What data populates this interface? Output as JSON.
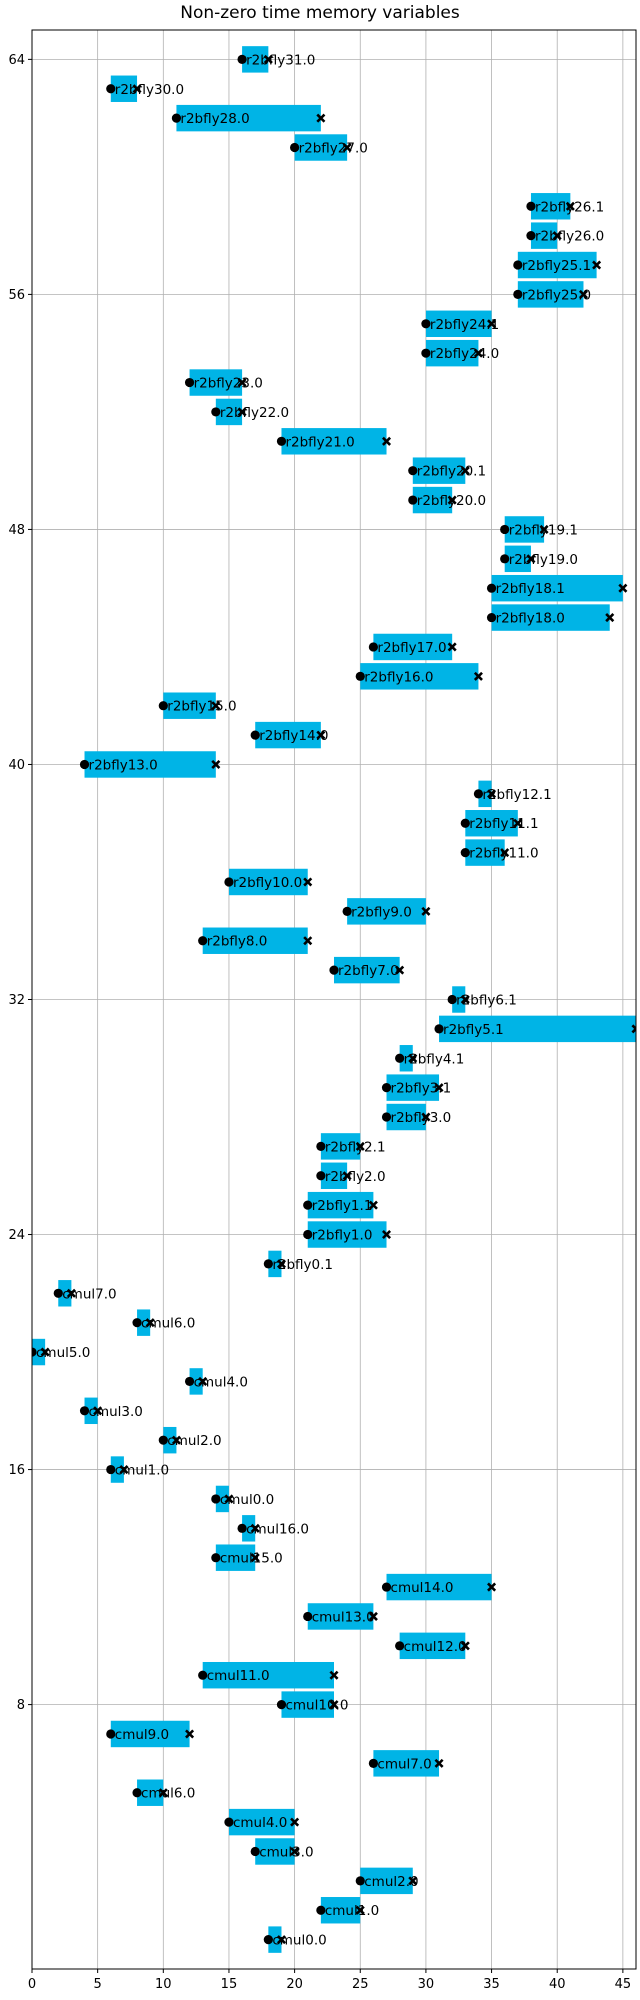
{
  "chart_data": {
    "type": "gantt",
    "title": "Non-zero time memory variables",
    "xlabel": "",
    "ylabel": "",
    "xlim": [
      0,
      46
    ],
    "ylim": [
      -1,
      65
    ],
    "x_ticks": [
      0,
      5,
      10,
      15,
      20,
      25,
      30,
      35,
      40,
      45
    ],
    "y_ticks": [
      8,
      16,
      24,
      32,
      40,
      48,
      56,
      64
    ],
    "grid": true,
    "colors": {
      "bar": "#00b4e6",
      "marker": "#000000"
    },
    "markers": {
      "start": "circle",
      "end": "x"
    },
    "tasks": [
      {
        "label": "cmul0.0",
        "row": 0,
        "start": 18,
        "end": 19
      },
      {
        "label": "cmul1.0",
        "row": 1,
        "start": 22,
        "end": 25
      },
      {
        "label": "cmul2.0",
        "row": 2,
        "start": 25,
        "end": 29
      },
      {
        "label": "cmul3.0",
        "row": 3,
        "start": 17,
        "end": 20
      },
      {
        "label": "cmul4.0",
        "row": 4,
        "start": 15,
        "end": 20
      },
      {
        "label": "cmul6.0",
        "row": 5,
        "start": 8,
        "end": 10
      },
      {
        "label": "cmul7.0",
        "row": 6,
        "start": 26,
        "end": 31
      },
      {
        "label": "cmul9.0",
        "row": 7,
        "start": 6,
        "end": 12
      },
      {
        "label": "cmul10.0",
        "row": 8,
        "start": 19,
        "end": 23
      },
      {
        "label": "cmul11.0",
        "row": 9,
        "start": 13,
        "end": 23
      },
      {
        "label": "cmul12.0",
        "row": 10,
        "start": 28,
        "end": 33
      },
      {
        "label": "cmul13.0",
        "row": 11,
        "start": 21,
        "end": 26
      },
      {
        "label": "cmul14.0",
        "row": 12,
        "start": 27,
        "end": 35
      },
      {
        "label": "cmul15.0",
        "row": 13,
        "start": 14,
        "end": 17
      },
      {
        "label": "cmul16.0",
        "row": 14,
        "start": 16,
        "end": 17
      },
      {
        "label": "cmul0.0",
        "row": 15,
        "start": 14,
        "end": 15
      },
      {
        "label": "cmul1.0",
        "row": 16,
        "start": 6,
        "end": 7
      },
      {
        "label": "cmul2.0",
        "row": 17,
        "start": 10,
        "end": 11
      },
      {
        "label": "cmul3.0",
        "row": 18,
        "start": 4,
        "end": 5
      },
      {
        "label": "cmul4.0",
        "row": 19,
        "start": 12,
        "end": 13
      },
      {
        "label": "cmul5.0",
        "row": 20,
        "start": 0,
        "end": 1
      },
      {
        "label": "cmul6.0",
        "row": 21,
        "start": 8,
        "end": 9
      },
      {
        "label": "cmul7.0",
        "row": 22,
        "start": 2,
        "end": 3
      },
      {
        "label": "r2bfly0.1",
        "row": 23,
        "start": 18,
        "end": 19
      },
      {
        "label": "r2bfly1.0",
        "row": 24,
        "start": 21,
        "end": 27
      },
      {
        "label": "r2bfly1.1",
        "row": 25,
        "start": 21,
        "end": 26
      },
      {
        "label": "r2bfly2.0",
        "row": 26,
        "start": 22,
        "end": 24
      },
      {
        "label": "r2bfly2.1",
        "row": 27,
        "start": 22,
        "end": 25
      },
      {
        "label": "r2bfly3.0",
        "row": 28,
        "start": 27,
        "end": 30
      },
      {
        "label": "r2bfly3.1",
        "row": 29,
        "start": 27,
        "end": 31
      },
      {
        "label": "r2bfly4.1",
        "row": 30,
        "start": 28,
        "end": 29
      },
      {
        "label": "r2bfly5.1",
        "row": 31,
        "start": 31,
        "end": 46
      },
      {
        "label": "r2bfly6.1",
        "row": 32,
        "start": 32,
        "end": 33
      },
      {
        "label": "r2bfly7.0",
        "row": 33,
        "start": 23,
        "end": 28
      },
      {
        "label": "r2bfly8.0",
        "row": 34,
        "start": 13,
        "end": 21
      },
      {
        "label": "r2bfly9.0",
        "row": 35,
        "start": 24,
        "end": 30
      },
      {
        "label": "r2bfly10.0",
        "row": 36,
        "start": 15,
        "end": 21
      },
      {
        "label": "r2bfly11.0",
        "row": 37,
        "start": 33,
        "end": 36
      },
      {
        "label": "r2bfly11.1",
        "row": 38,
        "start": 33,
        "end": 37
      },
      {
        "label": "r2bfly12.1",
        "row": 39,
        "start": 34,
        "end": 35
      },
      {
        "label": "r2bfly13.0",
        "row": 40,
        "start": 4,
        "end": 14
      },
      {
        "label": "r2bfly14.0",
        "row": 41,
        "start": 17,
        "end": 22
      },
      {
        "label": "r2bfly15.0",
        "row": 42,
        "start": 10,
        "end": 14
      },
      {
        "label": "r2bfly16.0",
        "row": 43,
        "start": 25,
        "end": 34
      },
      {
        "label": "r2bfly17.0",
        "row": 44,
        "start": 26,
        "end": 32
      },
      {
        "label": "r2bfly18.0",
        "row": 45,
        "start": 35,
        "end": 44
      },
      {
        "label": "r2bfly18.1",
        "row": 46,
        "start": 35,
        "end": 45
      },
      {
        "label": "r2bfly19.0",
        "row": 47,
        "start": 36,
        "end": 38
      },
      {
        "label": "r2bfly19.1",
        "row": 48,
        "start": 36,
        "end": 39
      },
      {
        "label": "r2bfly20.0",
        "row": 49,
        "start": 29,
        "end": 32
      },
      {
        "label": "r2bfly20.1",
        "row": 50,
        "start": 29,
        "end": 33
      },
      {
        "label": "r2bfly21.0",
        "row": 51,
        "start": 19,
        "end": 27
      },
      {
        "label": "r2bfly22.0",
        "row": 52,
        "start": 14,
        "end": 16
      },
      {
        "label": "r2bfly23.0",
        "row": 53,
        "start": 12,
        "end": 16
      },
      {
        "label": "r2bfly24.0",
        "row": 54,
        "start": 30,
        "end": 34
      },
      {
        "label": "r2bfly24.1",
        "row": 55,
        "start": 30,
        "end": 35
      },
      {
        "label": "r2bfly25.0",
        "row": 56,
        "start": 37,
        "end": 42
      },
      {
        "label": "r2bfly25.1",
        "row": 57,
        "start": 37,
        "end": 43
      },
      {
        "label": "r2bfly26.0",
        "row": 58,
        "start": 38,
        "end": 40
      },
      {
        "label": "r2bfly26.1",
        "row": 59,
        "start": 38,
        "end": 41
      },
      {
        "label": "r2bfly27.0",
        "row": 61,
        "start": 20,
        "end": 24
      },
      {
        "label": "r2bfly28.0",
        "row": 62,
        "start": 11,
        "end": 22
      },
      {
        "label": "r2bfly30.0",
        "row": 63,
        "start": 6,
        "end": 8
      },
      {
        "label": "r2bfly31.0",
        "row": 64,
        "start": 16,
        "end": 18
      }
    ]
  }
}
